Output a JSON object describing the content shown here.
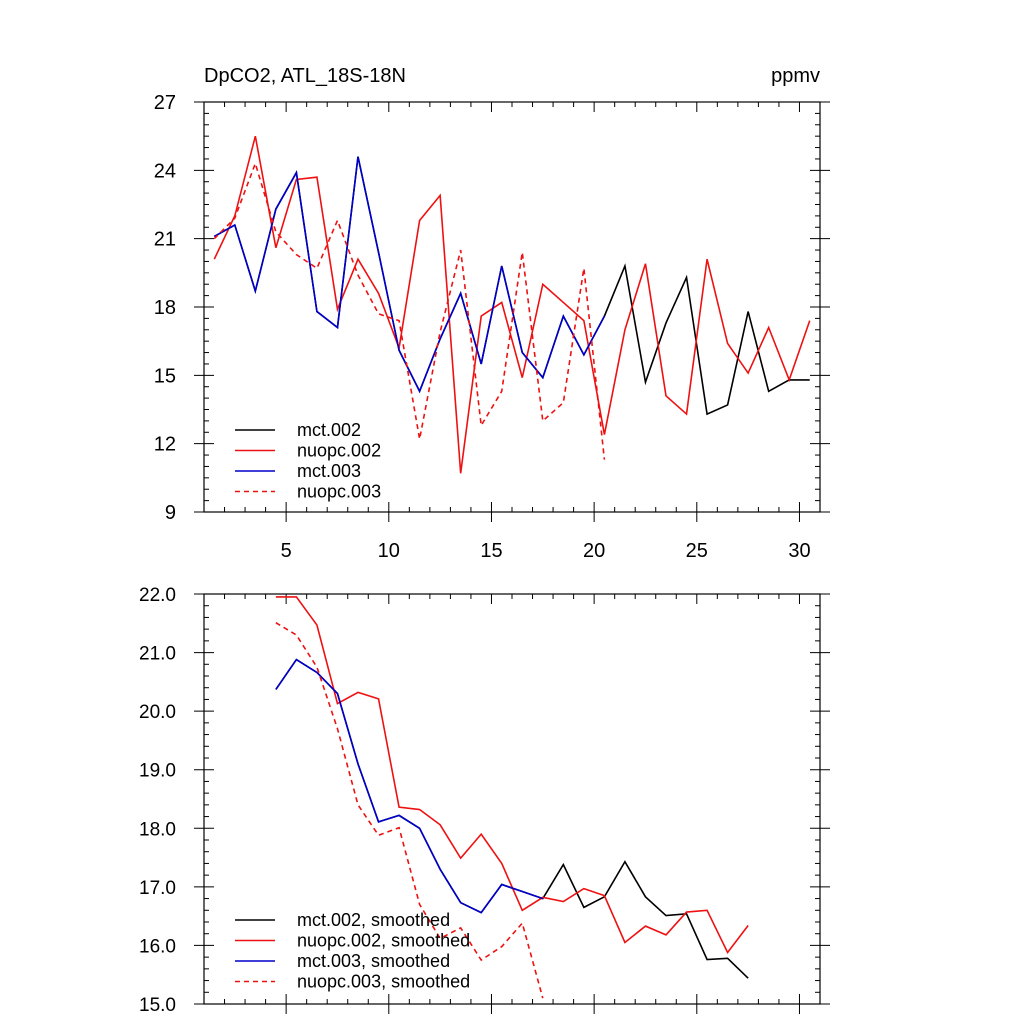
{
  "colors": {
    "black": "#000000",
    "red": "#ee1111",
    "blue": "#0000cc"
  },
  "chart_data": [
    {
      "type": "line",
      "title_left": "DpCO2, ATL_18S-18N",
      "title_right": "ppmv",
      "xlim": [
        1,
        31
      ],
      "ylim": [
        9,
        27
      ],
      "xticks": [
        5,
        10,
        15,
        20,
        25,
        30
      ],
      "xtick_labels": [
        "5",
        "10",
        "15",
        "20",
        "25",
        "30"
      ],
      "yticks": [
        9,
        12,
        15,
        18,
        21,
        24,
        27
      ],
      "ytick_labels": [
        "9",
        "12",
        "15",
        "18",
        "21",
        "24",
        "27"
      ],
      "legend_position": "bottom-left",
      "series": [
        {
          "name": "mct.002",
          "color": "#000000",
          "dash": false,
          "x": [
            1.5,
            2.5,
            3.5,
            4.5,
            5.5,
            6.5,
            7.5,
            8.5,
            9.5,
            10.5,
            11.5,
            12.5,
            13.5,
            14.5,
            15.5,
            16.5,
            17.5,
            18.5,
            19.5,
            20.5,
            21.5,
            22.5,
            23.5,
            24.5,
            25.5,
            26.5,
            27.5,
            28.5,
            29.5,
            30.5
          ],
          "values": [
            21.1,
            21.6,
            18.7,
            22.3,
            23.9,
            17.8,
            17.1,
            24.6,
            20.4,
            16.1,
            14.3,
            16.6,
            18.6,
            15.5,
            19.8,
            16.0,
            14.9,
            17.6,
            15.9,
            17.6,
            19.8,
            14.7,
            17.3,
            19.3,
            13.3,
            13.7,
            17.8,
            14.3,
            14.8,
            14.8
          ]
        },
        {
          "name": "nuopc.002",
          "color": "#ee1111",
          "dash": false,
          "x": [
            1.5,
            2.5,
            3.5,
            4.5,
            5.5,
            6.5,
            7.5,
            8.5,
            9.5,
            10.5,
            11.5,
            12.5,
            13.5,
            14.5,
            15.5,
            16.5,
            17.5,
            18.5,
            19.5,
            20.5,
            21.5,
            22.5,
            23.5,
            24.5,
            25.5,
            26.5,
            27.5,
            28.5,
            29.5,
            30.5
          ],
          "values": [
            20.1,
            22.0,
            25.5,
            20.6,
            23.6,
            23.7,
            17.9,
            20.1,
            18.6,
            16.2,
            21.8,
            22.9,
            10.7,
            17.6,
            18.2,
            14.9,
            19.0,
            18.2,
            17.4,
            12.4,
            17.0,
            19.9,
            14.1,
            13.3,
            20.1,
            16.4,
            15.1,
            17.1,
            14.8,
            17.4
          ]
        },
        {
          "name": "mct.003",
          "color": "#0000cc",
          "dash": false,
          "x": [
            1.5,
            2.5,
            3.5,
            4.5,
            5.5,
            6.5,
            7.5,
            8.5,
            9.5,
            10.5,
            11.5,
            12.5,
            13.5,
            14.5,
            15.5,
            16.5,
            17.5,
            18.5,
            19.5,
            20.5
          ],
          "values": [
            21.1,
            21.6,
            18.7,
            22.3,
            23.9,
            17.8,
            17.1,
            24.6,
            20.4,
            16.1,
            14.3,
            16.6,
            18.6,
            15.5,
            19.8,
            16.0,
            14.9,
            17.6,
            15.9,
            17.6
          ]
        },
        {
          "name": "nuopc.003",
          "color": "#ee1111",
          "dash": true,
          "x": [
            1.5,
            2.5,
            3.5,
            4.5,
            5.5,
            6.5,
            7.5,
            8.5,
            9.5,
            10.5,
            11.5,
            12.5,
            13.5,
            14.5,
            15.5,
            16.5,
            17.5,
            18.5,
            19.5,
            20.5
          ],
          "values": [
            21.0,
            21.9,
            24.3,
            21.3,
            20.3,
            19.7,
            21.8,
            19.4,
            17.7,
            17.4,
            12.2,
            16.9,
            20.5,
            12.8,
            14.3,
            20.4,
            13.0,
            13.8,
            19.7,
            11.3
          ]
        }
      ]
    },
    {
      "type": "line",
      "title_left": "",
      "title_right": "",
      "xlim": [
        1,
        31
      ],
      "ylim": [
        15,
        22
      ],
      "xticks": [
        5,
        10,
        15,
        20,
        25,
        30
      ],
      "xtick_labels": [],
      "yticks": [
        15,
        16,
        17,
        18,
        19,
        20,
        21,
        22
      ],
      "ytick_labels": [
        "15.0",
        "16.0",
        "17.0",
        "18.0",
        "19.0",
        "20.0",
        "21.0",
        "22.0"
      ],
      "legend_position": "bottom-left",
      "series": [
        {
          "name": "mct.002, smoothed",
          "color": "#000000",
          "dash": false,
          "x": [
            4.5,
            5.5,
            6.5,
            7.5,
            8.5,
            9.5,
            10.5,
            11.5,
            12.5,
            13.5,
            14.5,
            15.5,
            16.5,
            17.5,
            18.5,
            19.5,
            20.5,
            21.5,
            22.5,
            23.5,
            24.5,
            25.5,
            26.5,
            27.5
          ],
          "values": [
            20.37,
            20.88,
            20.66,
            20.3,
            19.1,
            18.11,
            18.22,
            18.0,
            17.3,
            16.73,
            16.56,
            17.04,
            16.92,
            16.8,
            17.38,
            16.65,
            16.83,
            17.43,
            16.83,
            16.51,
            16.54,
            15.76,
            15.78,
            15.44
          ]
        },
        {
          "name": "nuopc.002, smoothed",
          "color": "#ee1111",
          "dash": false,
          "x": [
            4.5,
            5.5,
            6.5,
            7.5,
            8.5,
            9.5,
            10.5,
            11.5,
            12.5,
            13.5,
            14.5,
            15.5,
            16.5,
            17.5,
            18.5,
            19.5,
            20.5,
            21.5,
            22.5,
            23.5,
            24.5,
            25.5,
            26.5,
            27.5
          ],
          "values": [
            21.95,
            21.95,
            21.47,
            20.13,
            20.32,
            20.21,
            18.36,
            18.32,
            18.06,
            17.49,
            17.9,
            17.4,
            16.6,
            16.82,
            16.75,
            16.97,
            16.85,
            16.05,
            16.33,
            16.18,
            16.57,
            16.6,
            15.88,
            16.34
          ]
        },
        {
          "name": "mct.003, smoothed",
          "color": "#0000cc",
          "dash": false,
          "x": [
            4.5,
            5.5,
            6.5,
            7.5,
            8.5,
            9.5,
            10.5,
            11.5,
            12.5,
            13.5,
            14.5,
            15.5,
            16.5,
            17.5
          ],
          "values": [
            20.37,
            20.88,
            20.66,
            20.3,
            19.1,
            18.11,
            18.22,
            18.0,
            17.3,
            16.73,
            16.56,
            17.04,
            16.92,
            16.8
          ]
        },
        {
          "name": "nuopc.003, smoothed",
          "color": "#ee1111",
          "dash": true,
          "x": [
            4.5,
            5.5,
            6.5,
            7.5,
            8.5,
            9.5,
            10.5,
            11.5,
            12.5,
            13.5,
            14.5,
            15.5,
            16.5,
            17.5
          ],
          "values": [
            21.51,
            21.3,
            20.75,
            19.7,
            18.4,
            17.88,
            18.01,
            16.7,
            16.12,
            16.3,
            15.75,
            15.98,
            16.38,
            15.1
          ]
        }
      ]
    }
  ]
}
